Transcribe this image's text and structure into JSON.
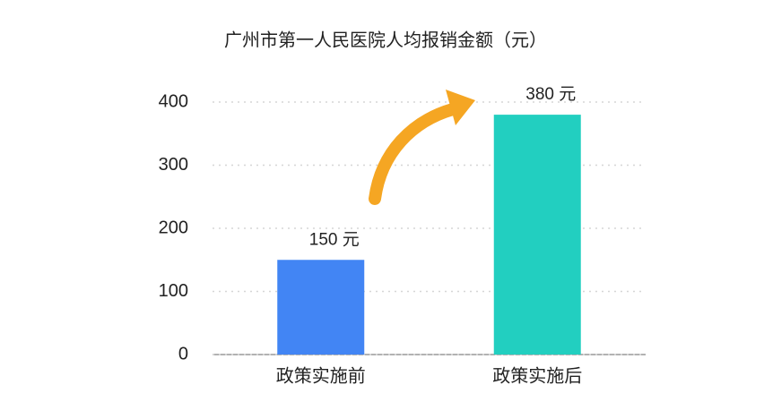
{
  "chart_data": {
    "type": "bar",
    "title": "广州市第一人民医院人均报销金额（元）",
    "categories": [
      "政策实施前",
      "政策实施后"
    ],
    "values": [
      150,
      380
    ],
    "value_labels": [
      "150 元",
      "380 元"
    ],
    "colors": [
      "#4285f4",
      "#22cfc0"
    ],
    "ylim": [
      0,
      400
    ],
    "yticks": [
      0,
      100,
      200,
      300,
      400
    ],
    "grid": true
  }
}
